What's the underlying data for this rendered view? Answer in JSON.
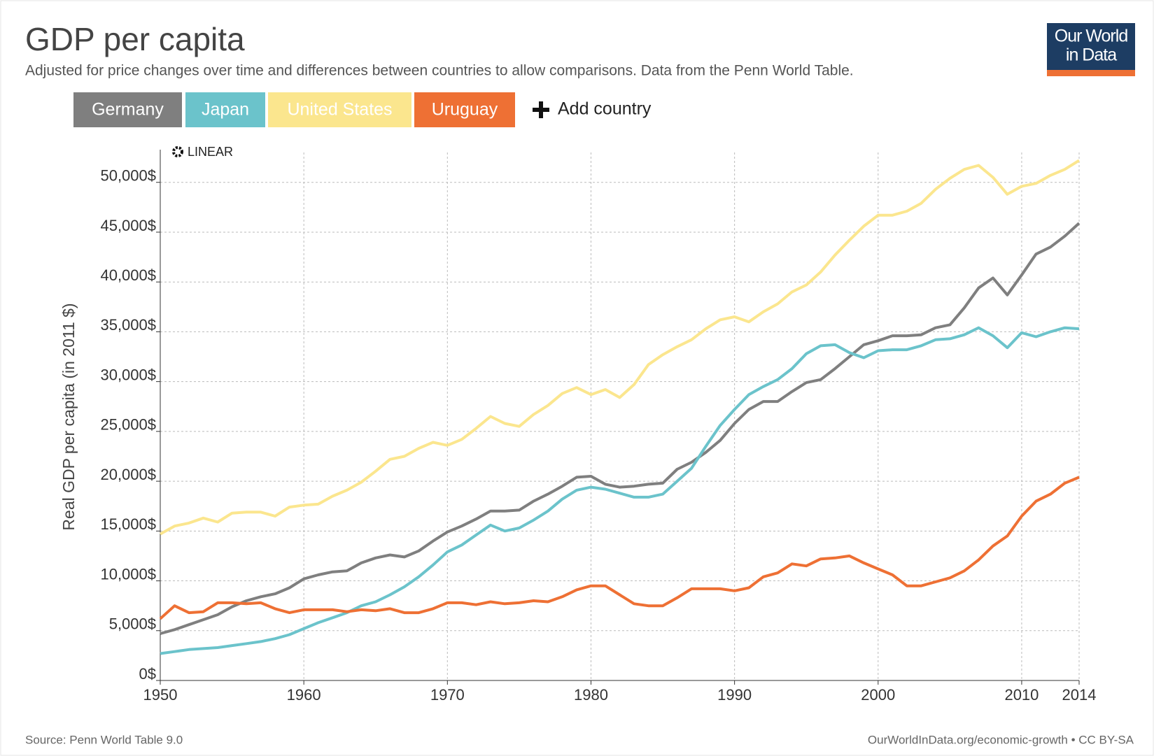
{
  "chart_data": {
    "type": "line",
    "title": "GDP per capita",
    "subtitle": "Adjusted for price changes over time and differences between countries to allow comparisons. Data from the Penn World Table.",
    "logo": [
      "Our World",
      "in Data"
    ],
    "add_button": "Add country",
    "scale_button": "LINEAR",
    "y_label": "Real GDP per capita (in 2011 $)",
    "source": "Source: Penn World Table 9.0",
    "footer": "OurWorldInData.org/economic-growth • CC BY-SA",
    "x": [
      1950,
      1951,
      1952,
      1953,
      1954,
      1955,
      1956,
      1957,
      1958,
      1959,
      1960,
      1961,
      1962,
      1963,
      1964,
      1965,
      1966,
      1967,
      1968,
      1969,
      1970,
      1971,
      1972,
      1973,
      1974,
      1975,
      1976,
      1977,
      1978,
      1979,
      1980,
      1981,
      1982,
      1983,
      1984,
      1985,
      1986,
      1987,
      1988,
      1989,
      1990,
      1991,
      1992,
      1993,
      1994,
      1995,
      1996,
      1997,
      1998,
      1999,
      2000,
      2001,
      2002,
      2003,
      2004,
      2005,
      2006,
      2007,
      2008,
      2009,
      2010,
      2011,
      2012,
      2013,
      2014
    ],
    "xlim": [
      1950,
      2014
    ],
    "xticks": [
      1950,
      1960,
      1970,
      1980,
      1990,
      2000,
      2010,
      2014
    ],
    "ylim": [
      0,
      53000
    ],
    "yticks": [
      {
        "value": 0,
        "label": "0$"
      },
      {
        "value": 5000,
        "label": "5,000$"
      },
      {
        "value": 10000,
        "label": "10,000$"
      },
      {
        "value": 15000,
        "label": "15,000$"
      },
      {
        "value": 20000,
        "label": "20,000$"
      },
      {
        "value": 25000,
        "label": "25,000$"
      },
      {
        "value": 30000,
        "label": "30,000$"
      },
      {
        "value": 35000,
        "label": "35,000$"
      },
      {
        "value": 40000,
        "label": "40,000$"
      },
      {
        "value": 45000,
        "label": "45,000$"
      },
      {
        "value": 50000,
        "label": "50,000$"
      }
    ],
    "grid": true,
    "series": [
      {
        "name": "Germany",
        "color": "#7f7f7f",
        "values": [
          4700,
          5100,
          5600,
          6100,
          6600,
          7400,
          8000,
          8400,
          8700,
          9300,
          10200,
          10600,
          10900,
          11000,
          11800,
          12300,
          12600,
          12400,
          13000,
          14000,
          14900,
          15500,
          16200,
          17000,
          17000,
          17100,
          18000,
          18700,
          19500,
          20400,
          20500,
          19700,
          19400,
          19500,
          19700,
          19800,
          21200,
          21900,
          22900,
          24100,
          25800,
          27200,
          28000,
          28000,
          29000,
          29900,
          30200,
          31300,
          32500,
          33700,
          34100,
          34600,
          34600,
          34700,
          35400,
          35700,
          37400,
          39400,
          40400,
          38700,
          40700,
          42800,
          43500,
          44600,
          45900
        ]
      },
      {
        "name": "Japan",
        "color": "#6bc3cb",
        "values": [
          2700,
          2900,
          3100,
          3200,
          3300,
          3500,
          3700,
          3900,
          4200,
          4600,
          5200,
          5800,
          6300,
          6800,
          7500,
          7900,
          8600,
          9400,
          10400,
          11600,
          12900,
          13600,
          14600,
          15600,
          15000,
          15300,
          16100,
          17000,
          18200,
          19100,
          19400,
          19200,
          18800,
          18400,
          18400,
          18700,
          20000,
          21300,
          23500,
          25600,
          27200,
          28700,
          29500,
          30200,
          31300,
          32800,
          33600,
          33700,
          32900,
          32400,
          33100,
          33200,
          33200,
          33600,
          34200,
          34300,
          34700,
          35400,
          34600,
          33400,
          34900,
          34500,
          35000,
          35400,
          35300
        ]
      },
      {
        "name": "United States",
        "color": "#fbe68e",
        "values": [
          14700,
          15500,
          15800,
          16300,
          15900,
          16800,
          16900,
          16900,
          16500,
          17400,
          17600,
          17700,
          18500,
          19100,
          19900,
          21000,
          22200,
          22500,
          23300,
          23900,
          23600,
          24200,
          25300,
          26500,
          25800,
          25500,
          26700,
          27600,
          28800,
          29400,
          28700,
          29200,
          28400,
          29700,
          31700,
          32700,
          33500,
          34200,
          35300,
          36200,
          36500,
          36000,
          37000,
          37800,
          39000,
          39700,
          41000,
          42700,
          44200,
          45600,
          46700,
          46700,
          47100,
          47900,
          49300,
          50400,
          51300,
          51700,
          50500,
          48800,
          49600,
          49900,
          50700,
          51300,
          52200
        ]
      },
      {
        "name": "Uruguay",
        "color": "#ee7034",
        "values": [
          6200,
          7500,
          6800,
          6900,
          7800,
          7800,
          7700,
          7800,
          7200,
          6800,
          7100,
          7100,
          7100,
          6900,
          7100,
          7000,
          7200,
          6800,
          6800,
          7200,
          7800,
          7800,
          7600,
          7900,
          7700,
          7800,
          8000,
          7900,
          8400,
          9100,
          9500,
          9500,
          8600,
          7700,
          7500,
          7500,
          8300,
          9200,
          9200,
          9200,
          9000,
          9300,
          10400,
          10800,
          11700,
          11500,
          12200,
          12300,
          12500,
          11800,
          11200,
          10600,
          9500,
          9500,
          9900,
          10300,
          11000,
          12100,
          13500,
          14500,
          16500,
          18000,
          18700,
          19800,
          20400
        ]
      }
    ]
  }
}
